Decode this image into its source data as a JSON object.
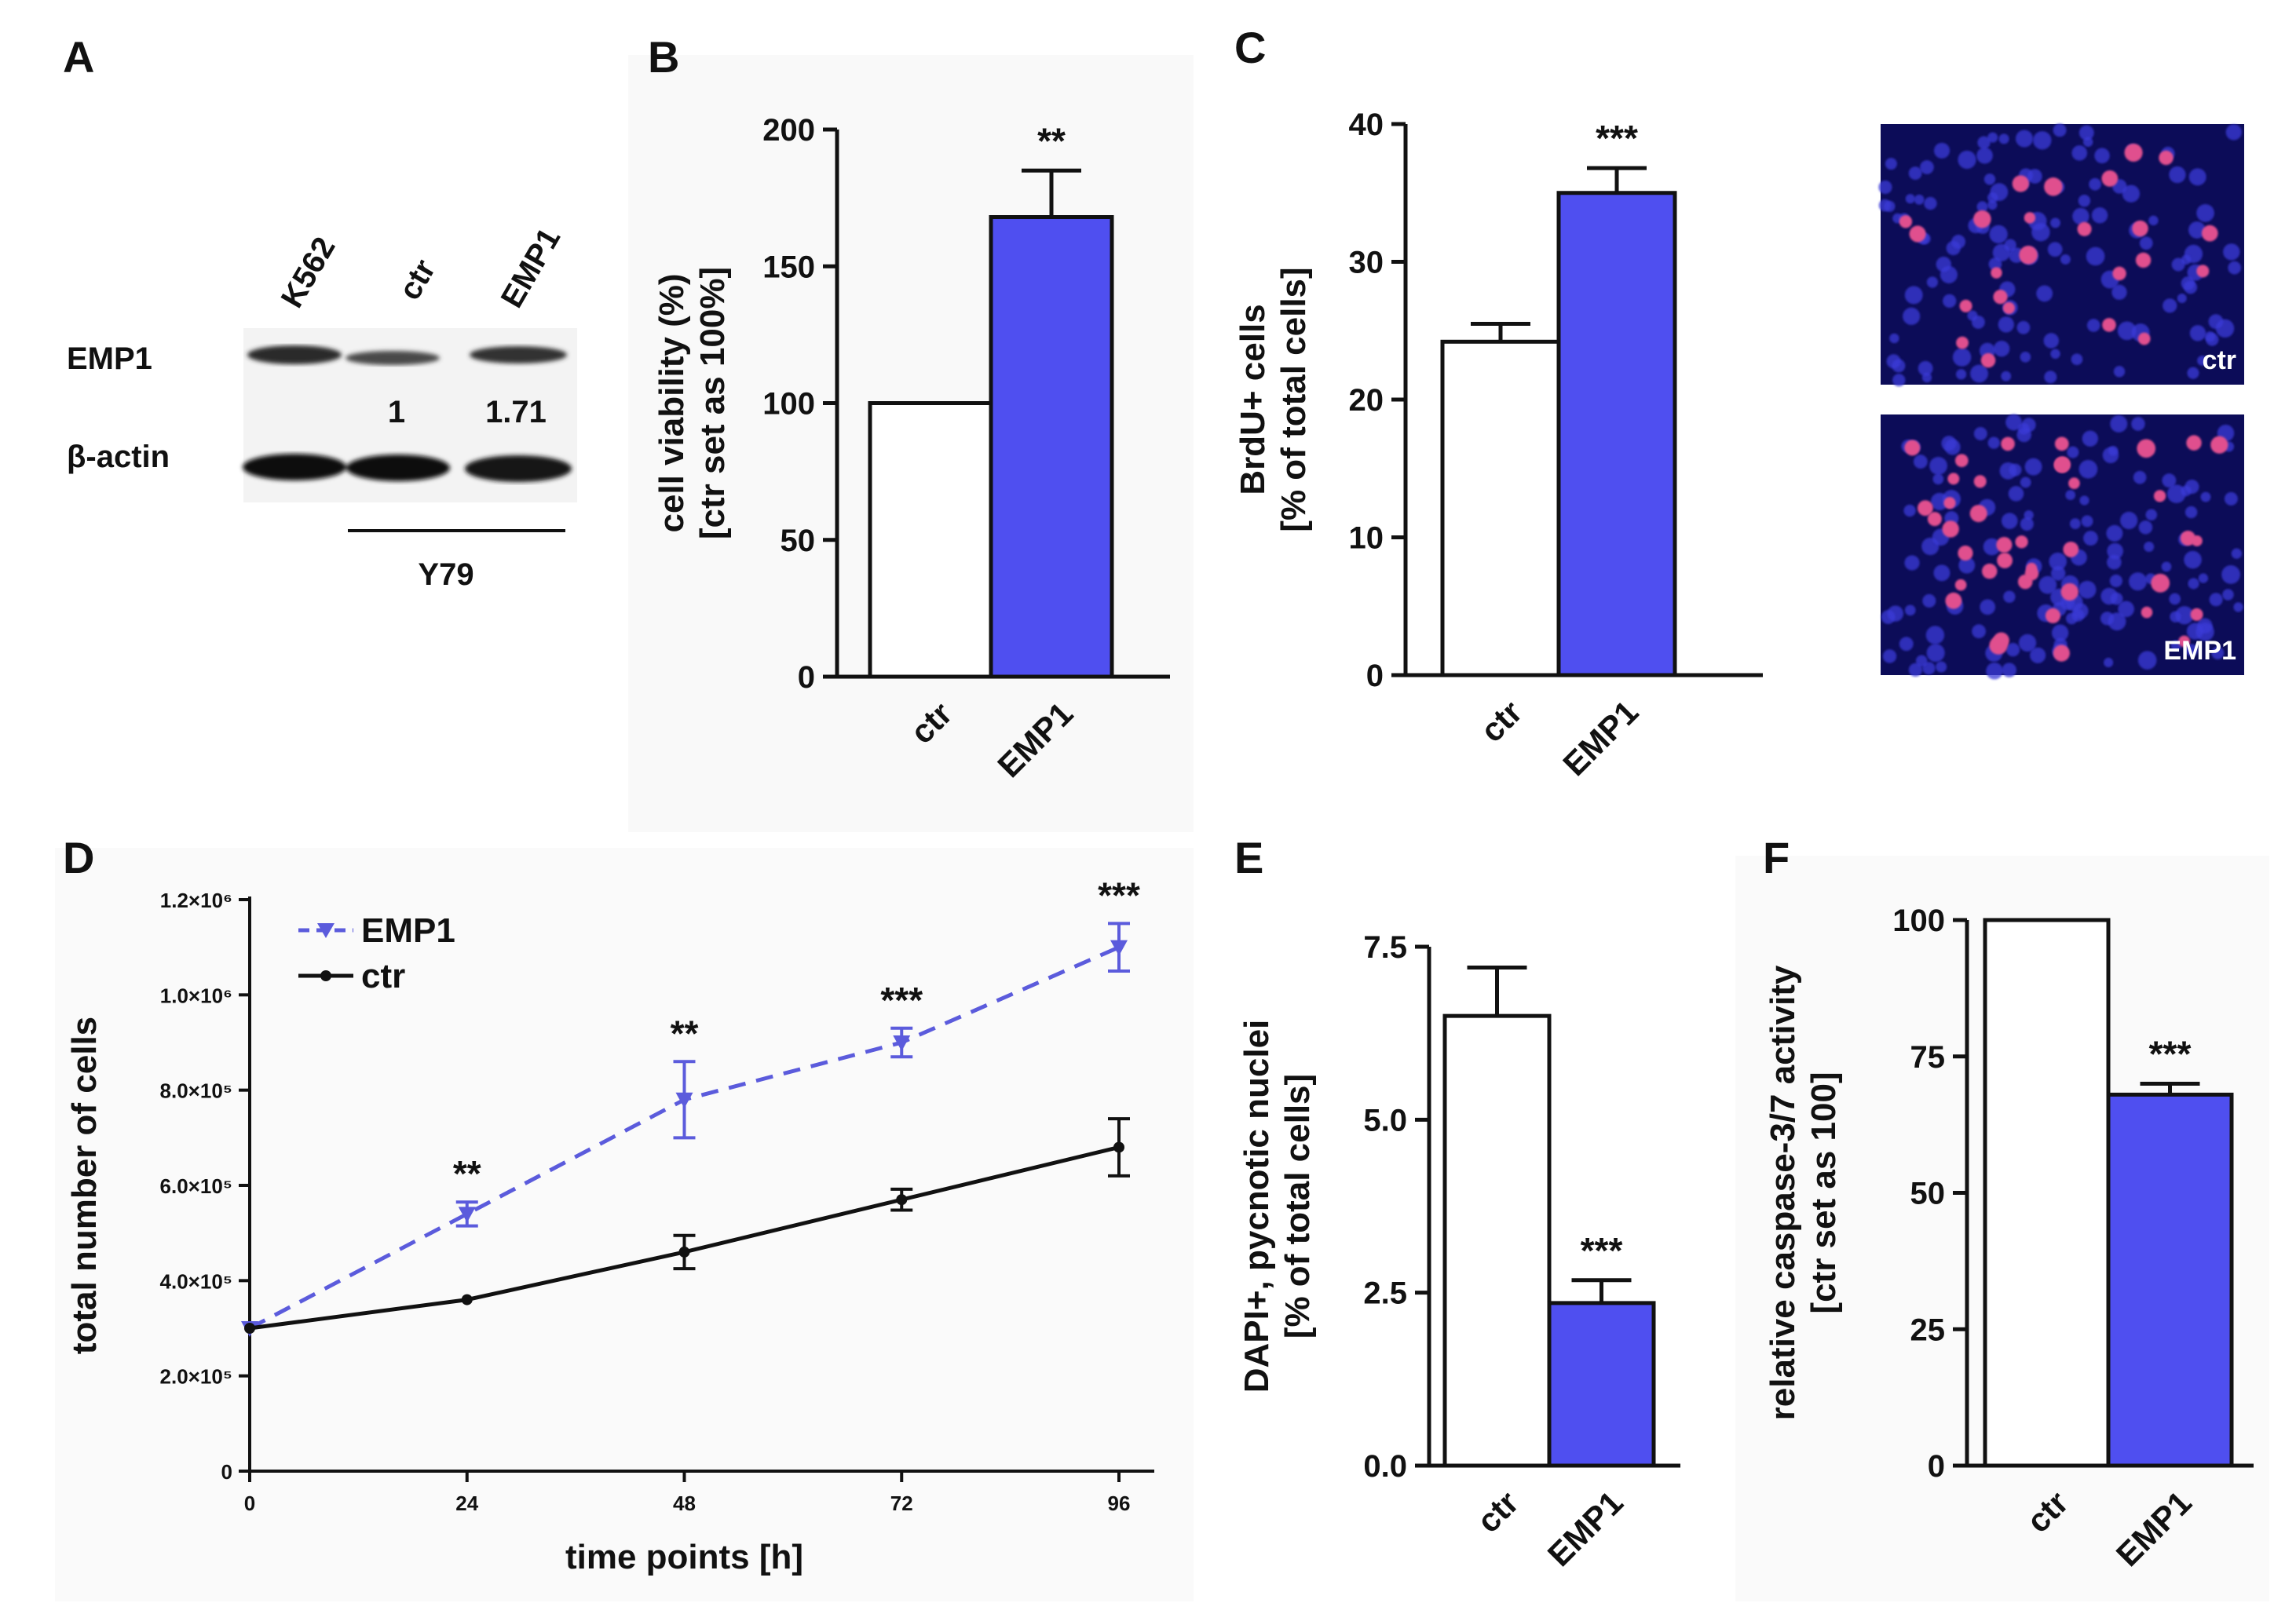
{
  "panels": {
    "A": {
      "letter": "A",
      "lanes": [
        "K562",
        "ctr",
        "EMP1"
      ],
      "rows": [
        "EMP1",
        "β-actin"
      ],
      "quant": [
        "1",
        "1.71"
      ],
      "group_label": "Y79"
    },
    "B": {
      "letter": "B"
    },
    "C": {
      "letter": "C",
      "image_labels": [
        "ctr",
        "EMP1"
      ]
    },
    "D": {
      "letter": "D"
    },
    "E": {
      "letter": "E"
    },
    "F": {
      "letter": "F"
    }
  },
  "colors": {
    "emp1": "#4f4ff0",
    "ctr_bar": "#ffffff",
    "axis": "#111111",
    "emp1_line": "#5b5bdc"
  },
  "chart_data": [
    {
      "panel": "B",
      "type": "bar",
      "categories": [
        "ctr",
        "EMP1"
      ],
      "values": [
        100,
        168
      ],
      "errors": [
        0,
        17
      ],
      "ylabel": [
        "cell viability (%)",
        "[ctr set as 100%]"
      ],
      "ylim": [
        0,
        200
      ],
      "yticks": [
        0,
        50,
        100,
        150,
        200
      ],
      "significance": [
        "",
        "**"
      ]
    },
    {
      "panel": "C",
      "type": "bar",
      "categories": [
        "ctr",
        "EMP1"
      ],
      "values": [
        24.2,
        35
      ],
      "errors": [
        1.3,
        1.8
      ],
      "ylabel": [
        "BrdU+ cells",
        "[% of total cells]"
      ],
      "ylim": [
        0,
        40
      ],
      "yticks": [
        0,
        10,
        20,
        30,
        40
      ],
      "significance": [
        "",
        "***"
      ]
    },
    {
      "panel": "D",
      "type": "line",
      "x": [
        0,
        24,
        48,
        72,
        96
      ],
      "xlabel": "time points [h]",
      "ylabel": "total number of cells",
      "ylim": [
        0,
        1200000
      ],
      "yticks": [
        0,
        200000,
        400000,
        600000,
        800000,
        1000000,
        1200000
      ],
      "ytick_labels": [
        "0",
        "2.0×10⁵",
        "4.0×10⁵",
        "6.0×10⁵",
        "8.0×10⁵",
        "1.0×10⁶",
        "1.2×10⁶"
      ],
      "legend_position": "top-left",
      "series": [
        {
          "name": "EMP1",
          "values": [
            300000,
            540000,
            780000,
            900000,
            1100000
          ],
          "errors": [
            0,
            25000,
            80000,
            30000,
            50000
          ],
          "style": "dashed"
        },
        {
          "name": "ctr",
          "values": [
            300000,
            360000,
            460000,
            570000,
            680000
          ],
          "errors": [
            0,
            0,
            35000,
            22000,
            60000
          ],
          "style": "solid"
        }
      ],
      "significance": [
        "",
        "**",
        "**",
        "***",
        "***"
      ]
    },
    {
      "panel": "E",
      "type": "bar",
      "categories": [
        "ctr",
        "EMP1"
      ],
      "values": [
        6.5,
        2.35
      ],
      "errors": [
        0.7,
        0.33
      ],
      "ylabel": [
        "DAPI+, pycnotic nuclei",
        "[% of total cells]"
      ],
      "ylim": [
        0,
        7.5
      ],
      "yticks": [
        0,
        2.5,
        5,
        7.5
      ],
      "ytick_labels": [
        "0.0",
        "2.5",
        "5.0",
        "7.5"
      ],
      "significance": [
        "",
        "***"
      ]
    },
    {
      "panel": "F",
      "type": "bar",
      "categories": [
        "ctr",
        "EMP1"
      ],
      "values": [
        100,
        68
      ],
      "errors": [
        0,
        2
      ],
      "ylabel": [
        "relative caspase-3/7 activity",
        "[ctr set as 100]"
      ],
      "ylim": [
        0,
        100
      ],
      "yticks": [
        0,
        25,
        50,
        75,
        100
      ],
      "significance": [
        "",
        "***"
      ]
    }
  ]
}
